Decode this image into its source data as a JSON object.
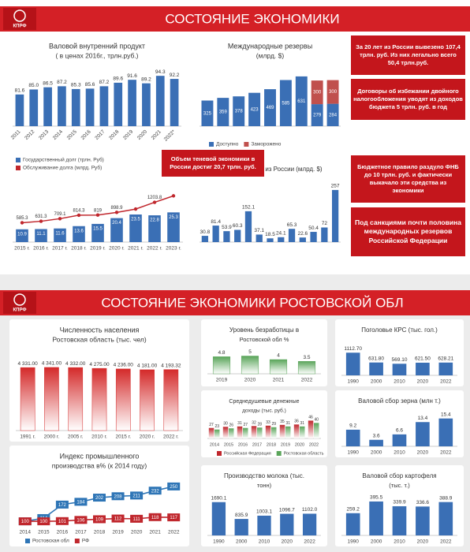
{
  "top_header": {
    "logo": "КПРФ",
    "title": "СОСТОЯНИЕ ЭКОНОМИКИ"
  },
  "bottom_header": {
    "logo": "КПРФ",
    "title": "СОСТОЯНИЕ ЭКОНОМИКИ РОСТОВСКОЙ ОБЛ"
  },
  "notes": [
    "За 20 лет из России вывезено 107,4 трлн. руб. Из них легально всего 50,4 трлн.руб.",
    "Договоры об избежании двойного налогообложения уводят из доходов бюджета 5 трлн. руб. в год",
    "Бюджетное правило раздуло ФНБ до 10 трлн. руб. и фактически выкачало эти средства из экономики",
    "Под санкциями почти половина международных резервов Российской Федерации"
  ],
  "callout": "Объем теневой экономики в России достиг 20,7 трлн. руб.",
  "chart_data": [
    {
      "type": "bar",
      "title": "Валовой внутренний продукт",
      "subtitle": "( в ценах 2016г., трлн.руб.)",
      "categories": [
        "2011",
        "2012",
        "2013",
        "2014",
        "2015",
        "2016",
        "2017",
        "2018",
        "2019",
        "2020",
        "2021",
        "2022*"
      ],
      "values": [
        81.6,
        85.0,
        86.5,
        87.2,
        85.3,
        85.6,
        87.2,
        89.6,
        91.6,
        89.2,
        94.3,
        92.2
      ],
      "value_labels": [
        "81.6",
        "85.0",
        "86.5",
        "87.2",
        "85.3",
        "85.6",
        "87.2",
        "89.6",
        "91.6",
        "89.2",
        "94.3",
        "92.2"
      ],
      "color": "#3a6fb5",
      "ylim": [
        60,
        96
      ]
    },
    {
      "type": "stacked_bar",
      "title": "Международные резервы",
      "subtitle": "(млрд. $)",
      "categories": [
        null,
        null,
        null,
        null,
        null,
        null,
        null,
        null,
        null
      ],
      "series": [
        {
          "name": "Доступно",
          "color": "#3a6fb5",
          "values": [
            325,
            359,
            378,
            423,
            469,
            585,
            631,
            279,
            284
          ]
        },
        {
          "name": "Заморожено",
          "color": "#c0504d",
          "values": [
            null,
            null,
            null,
            null,
            null,
            null,
            null,
            300,
            300
          ]
        }
      ],
      "ylim": [
        0,
        700
      ]
    },
    {
      "type": "bar_line",
      "categories": [
        "2015 г.",
        "2016 г.",
        "2017 г.",
        "2018 г.",
        "2019 г.",
        "2020 г.",
        "2021 г.",
        "2022 г.",
        "2023 г."
      ],
      "series": [
        {
          "name": "Государственный долг (трлн. Руб)",
          "color": "#3a6fb5",
          "values": [
            10.9,
            11.1,
            11.6,
            13.6,
            15.5,
            20.4,
            23.5,
            22.8,
            25.3
          ]
        },
        {
          "name": "Обслуживание долга (млрд. Руб)",
          "color": "#c0272d",
          "axis": "y2",
          "values": [
            585.3,
            631.3,
            709.1,
            814.3,
            819,
            898.9,
            1000,
            1203.8,
            1400
          ],
          "value_labels": [
            "585.3",
            "631.3",
            "709.1",
            "814.3",
            "819",
            "898.9",
            null,
            "1203.8",
            null
          ]
        }
      ],
      "ylim": [
        0,
        45
      ],
      "y2lim": [
        0,
        1600
      ]
    },
    {
      "type": "bar",
      "title": "Отток капитала из России (млрд. $)",
      "categories": [
        null,
        null,
        null,
        null,
        null,
        null,
        null,
        null,
        null,
        null,
        null,
        null,
        null
      ],
      "values": [
        30.8,
        81.4,
        53.9,
        60.3,
        152.1,
        37.1,
        18.5,
        24.1,
        65.3,
        22.6,
        50.4,
        72,
        257
      ],
      "color": "#3a6fb5",
      "ylim": [
        0,
        280
      ]
    },
    {
      "type": "bar",
      "title": "Численность населения",
      "subtitle": "Ростовская область (тыс. чел)",
      "categories": [
        "1991 г.",
        "2000 г.",
        "2005 г.",
        "2010 г.",
        "2015 г.",
        "2020 г.",
        "2022 г."
      ],
      "values": [
        4331,
        4341,
        4332,
        4275,
        4236,
        4181,
        4193.32
      ],
      "value_labels": [
        "4 331.00",
        "4 341.00",
        "4 332.00",
        "4 275.00",
        "4 236.00",
        "4 181.00",
        "4 193.32"
      ],
      "color": "#d42a2a",
      "gradient": true,
      "ylim": [
        0,
        4500
      ]
    },
    {
      "type": "bar",
      "title": "Уровень безработицы в",
      "subtitle": "Ростовской обл %",
      "categories": [
        "2019",
        "2020",
        "2021",
        "2022"
      ],
      "values": [
        4.8,
        5,
        4,
        3.5
      ],
      "color": "#5aa55a",
      "gradient": true,
      "ylim": [
        0,
        6
      ]
    },
    {
      "type": "bar",
      "title": "Поголовье КРС (тыс. гол.)",
      "categories": [
        "1990",
        "2000",
        "2010",
        "2020",
        "2022"
      ],
      "values": [
        1112.7,
        631.8,
        569.1,
        621.5,
        628.21
      ],
      "value_labels": [
        "1112.70",
        "631.80",
        "569.10",
        "621.50",
        "628.21"
      ],
      "color": "#3a6fb5",
      "ylim": [
        0,
        1200
      ]
    },
    {
      "type": "grouped_bar",
      "title": "Среднедушевые денежные",
      "subtitle": "доходы (тыс. руб.)",
      "categories": [
        "2014",
        "2015",
        "2016",
        "2017",
        "2018",
        "2019",
        "2020",
        "2022"
      ],
      "series": [
        {
          "name": "Российская Федерация",
          "color": "#c0272d",
          "values": [
            27,
            30,
            31,
            32,
            33,
            35,
            36,
            46
          ]
        },
        {
          "name": "Ростовская область",
          "color": "#5aa55a",
          "values": [
            23,
            26,
            27,
            28,
            29,
            31,
            31,
            40
          ]
        }
      ],
      "ylim": [
        0,
        55
      ]
    },
    {
      "type": "bar",
      "title": "Валовой сбор зерна (млн т.)",
      "categories": [
        "1990",
        "2000",
        "2010",
        "2020",
        "2022"
      ],
      "values": [
        9.2,
        3.6,
        6.6,
        13.4,
        15.4
      ],
      "color": "#3a6fb5",
      "ylim": [
        0,
        17
      ]
    },
    {
      "type": "line",
      "title": "Индекс промышленного",
      "subtitle": "производства в% (к 2014 году)",
      "categories": [
        "2014",
        "2015",
        "2016",
        "2017",
        "2018",
        "2019",
        "2020",
        "2021",
        "2022"
      ],
      "series": [
        {
          "name": "Ростовская обл",
          "color": "#2e75b6",
          "values": [
            100,
            114,
            172,
            184,
            202,
            208,
            211,
            232,
            250
          ]
        },
        {
          "name": "РФ",
          "color": "#c0272d",
          "values": [
            100,
            100,
            101,
            106,
            109,
            112,
            111,
            118,
            117
          ]
        }
      ],
      "ylim": [
        80,
        270
      ]
    },
    {
      "type": "bar",
      "title": "Производство молока (тыс.",
      "subtitle": "тонн)",
      "categories": [
        "1990",
        "2000",
        "2010",
        "2020",
        "2022"
      ],
      "values": [
        1690.1,
        835.9,
        1003.1,
        1096.7,
        1102
      ],
      "value_labels": [
        "1690.1",
        "835.9",
        "1003.1",
        "1096.7",
        "1102.0"
      ],
      "color": "#3a6fb5",
      "ylim": [
        0,
        1800
      ]
    },
    {
      "type": "bar",
      "title": "Валовой сбор картофеля",
      "subtitle": "(тыс. т.)",
      "categories": [
        "1990",
        "2000",
        "2010",
        "2020",
        "2022"
      ],
      "values": [
        259.2,
        395.5,
        339.9,
        336.6,
        388.9
      ],
      "color": "#3a6fb5",
      "ylim": [
        0,
        450
      ]
    }
  ]
}
